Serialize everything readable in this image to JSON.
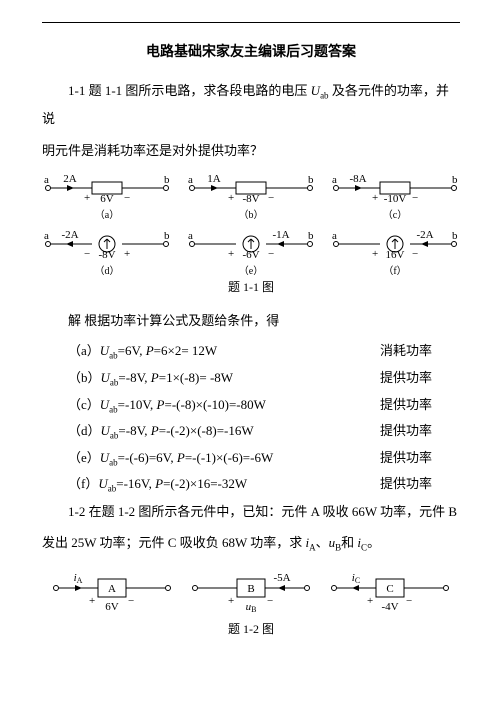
{
  "title": "电路基础宋家友主编课后习题答案",
  "q1": "1-1  题 1-1 图所示电路，求各段电路的电压 ",
  "q1_sym": "U",
  "q1_sub": "ab",
  "q1_tail": " 及各元件的功率，并说",
  "q1_line2": "明元件是消耗功率还是对外提供功率？",
  "fig1": {
    "items": [
      {
        "cur": "2A",
        "val": "6V",
        "lbl": "（a）",
        "type": "box",
        "cur_dir": "right",
        "pol": "+-"
      },
      {
        "cur": "1A",
        "val": "-8V",
        "lbl": "（b）",
        "type": "box",
        "cur_dir": "right",
        "pol": "+-"
      },
      {
        "cur": "-8A",
        "val": "-10V",
        "lbl": "（c）",
        "type": "box",
        "cur_dir": "right",
        "pol": "+-"
      },
      {
        "cur": "-2A",
        "val": "-8V",
        "lbl": "（d）",
        "type": "circ",
        "cur_dir": "left",
        "pol": "-+"
      },
      {
        "cur": "-1A",
        "val": "-6V",
        "lbl": "（e）",
        "type": "circ",
        "cur_dir": "left",
        "pol": "+-",
        "cur_pos": "right"
      },
      {
        "cur": "-2A",
        "val": "16V",
        "lbl": "（f）",
        "type": "circ",
        "cur_dir": "left",
        "pol": "+-",
        "cur_pos": "right"
      }
    ],
    "caption": "题 1-1 图"
  },
  "sol_head": "解  根据功率计算公式及题给条件，得",
  "answers": [
    {
      "l": "（a）",
      "eq": "=6V, ",
      "eq2": "=6×2= 12W",
      "r": "消耗功率"
    },
    {
      "l": "（b）",
      "eq": "=-8V, ",
      "eq2": "=1×(-8)= -8W",
      "r": "提供功率"
    },
    {
      "l": "（c）",
      "eq": "=-10V, ",
      "eq2": "=-(-8)×(-10)=-80W",
      "r": "提供功率"
    },
    {
      "l": "（d）",
      "eq": "=-8V, ",
      "eq2": "=-(-2)×(-8)=-16W",
      "r": "提供功率"
    },
    {
      "l": "（e）",
      "eq": "=-(-6)=6V, ",
      "eq2": "=-(-1)×(-6)=-6W",
      "r": "提供功率"
    },
    {
      "l": "（f）",
      "eq": "=-16V, ",
      "eq2": "=(-2)×16=-32W",
      "r": "提供功率"
    }
  ],
  "q2_a": "1-2  在题 1-2 图所示各元件中，已知：元件 A 吸收 66W 功率，元件 B",
  "q2_b": "发出 25W 功率；元件 C 吸收负 68W 功率，求 ",
  "q2_c": "、",
  "q2_d": "和 ",
  "q2_e": "。",
  "ia": "i",
  "iaA": "A",
  "ub": "u",
  "ubB": "B",
  "ic": "i",
  "icC": "C",
  "fig2": {
    "items": [
      {
        "box": "A",
        "cur": "iA",
        "val": "6V",
        "cur_dir": "right",
        "cur_pos": "left",
        "pol": "+-",
        "val_below": true
      },
      {
        "box": "B",
        "cur": "-5A",
        "val": "uB",
        "cur_dir": "left",
        "cur_pos": "right",
        "pol": "+-",
        "val_below": true,
        "val_it": true
      },
      {
        "box": "C",
        "cur": "iC",
        "val": "-4V",
        "cur_dir": "left",
        "cur_pos": "left",
        "pol": "+-",
        "val_below": true
      }
    ],
    "caption": "题 1-2 图"
  },
  "colors": {
    "line": "#000000",
    "bg": "#ffffff"
  }
}
